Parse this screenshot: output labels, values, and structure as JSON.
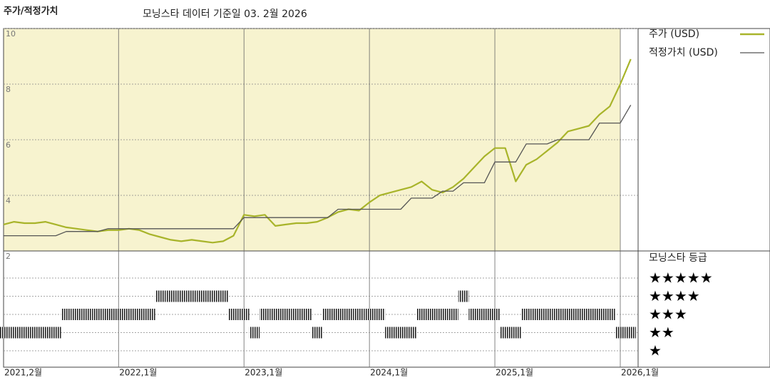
{
  "chart_data": {
    "type": "line",
    "title": "주가/적정가치",
    "subtitle": "모닝스타 데이터 기준일 03. 2월 2026",
    "x": [
      "2021-02",
      "2021-03",
      "2021-04",
      "2021-05",
      "2021-06",
      "2021-07",
      "2021-08",
      "2021-09",
      "2021-10",
      "2021-11",
      "2021-12",
      "2022-01",
      "2022-02",
      "2022-03",
      "2022-04",
      "2022-05",
      "2022-06",
      "2022-07",
      "2022-08",
      "2022-09",
      "2022-10",
      "2022-11",
      "2022-12",
      "2023-01",
      "2023-02",
      "2023-03",
      "2023-04",
      "2023-05",
      "2023-06",
      "2023-07",
      "2023-08",
      "2023-09",
      "2023-10",
      "2023-11",
      "2023-12",
      "2024-01",
      "2024-02",
      "2024-03",
      "2024-04",
      "2024-05",
      "2024-06",
      "2024-07",
      "2024-08",
      "2024-09",
      "2024-10",
      "2024-11",
      "2024-12",
      "2025-01",
      "2025-02",
      "2025-03",
      "2025-04",
      "2025-05",
      "2025-06",
      "2025-07",
      "2025-08",
      "2025-09",
      "2025-10",
      "2025-11",
      "2025-12",
      "2026-01",
      "2026-02"
    ],
    "series": [
      {
        "name": "주가 (USD)",
        "color": "#a8b42a",
        "values": [
          2.95,
          3.05,
          3.0,
          3.0,
          3.05,
          2.95,
          2.85,
          2.8,
          2.75,
          2.7,
          2.75,
          2.75,
          2.8,
          2.75,
          2.6,
          2.5,
          2.4,
          2.35,
          2.4,
          2.35,
          2.3,
          2.35,
          2.55,
          3.3,
          3.25,
          3.3,
          2.9,
          2.95,
          3.0,
          3.0,
          3.05,
          3.2,
          3.4,
          3.5,
          3.45,
          3.75,
          4.0,
          4.1,
          4.2,
          4.3,
          4.5,
          4.2,
          4.1,
          4.3,
          4.6,
          5.0,
          5.4,
          5.7,
          5.7,
          4.5,
          5.1,
          5.3,
          5.6,
          5.9,
          6.3,
          6.4,
          6.5,
          6.9,
          7.2,
          8.0,
          8.9
        ]
      },
      {
        "name": "적정가치 (USD)",
        "color": "#555555",
        "values": [
          2.55,
          2.55,
          2.55,
          2.55,
          2.55,
          2.55,
          2.7,
          2.7,
          2.7,
          2.7,
          2.8,
          2.8,
          2.8,
          2.8,
          2.8,
          2.8,
          2.8,
          2.8,
          2.8,
          2.8,
          2.8,
          2.8,
          2.8,
          3.2,
          3.2,
          3.2,
          3.2,
          3.2,
          3.2,
          3.2,
          3.2,
          3.2,
          3.5,
          3.5,
          3.5,
          3.5,
          3.5,
          3.5,
          3.5,
          3.9,
          3.9,
          3.9,
          4.15,
          4.15,
          4.45,
          4.45,
          4.45,
          5.2,
          5.2,
          5.2,
          5.85,
          5.85,
          5.85,
          6.0,
          6.0,
          6.0,
          6.0,
          6.6,
          6.6,
          6.6,
          7.25
        ]
      }
    ],
    "ylim": [
      2,
      10
    ],
    "yticks": [
      2,
      4,
      6,
      8,
      10
    ],
    "xticks": [
      {
        "value": "2021-02",
        "label": "2021,2월"
      },
      {
        "value": "2022-01",
        "label": "2022,1월"
      },
      {
        "value": "2023-01",
        "label": "2023,1월"
      },
      {
        "value": "2024-01",
        "label": "2024,1월"
      },
      {
        "value": "2025-01",
        "label": "2025,1월"
      },
      {
        "value": "2026-01",
        "label": "2026,1월"
      }
    ],
    "grid": true,
    "rating": {
      "title": "모닝스타 등급",
      "color": "#222222",
      "levels": [
        {
          "value": 5,
          "label": "★★★★★"
        },
        {
          "value": 4,
          "label": "★★★★"
        },
        {
          "value": 3,
          "label": "★★★"
        },
        {
          "value": 2,
          "label": "★★"
        },
        {
          "value": 1,
          "label": "★"
        }
      ],
      "values": [
        2,
        2,
        2,
        2,
        2,
        2,
        3,
        3,
        3,
        3,
        3,
        3,
        3,
        3,
        3,
        4,
        4,
        4,
        4,
        4,
        4,
        4,
        3,
        3,
        2,
        3,
        3,
        3,
        3,
        3,
        2,
        3,
        3,
        3,
        3,
        3,
        3,
        2,
        2,
        2,
        3,
        3,
        3,
        3,
        4,
        3,
        3,
        3,
        2,
        2,
        3,
        3,
        3,
        3,
        3,
        3,
        3,
        3,
        3,
        2,
        2
      ]
    }
  }
}
